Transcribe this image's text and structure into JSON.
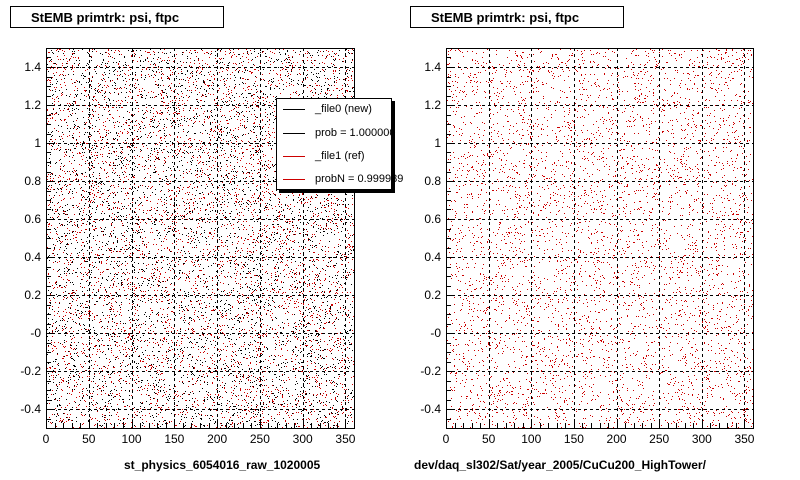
{
  "chart_data": [
    {
      "type": "scatter",
      "title": "StEMB primtrk: psi, ftpc",
      "xlabel": "st_physics_6054016_raw_1020005",
      "ylabel": "",
      "xlim": [
        0,
        360
      ],
      "ylim": [
        -0.5,
        1.5
      ],
      "x_ticks": [
        0,
        50,
        100,
        150,
        200,
        250,
        300,
        350
      ],
      "x_tick_labels": [
        "0",
        "50",
        "100",
        "150",
        "200",
        "250",
        "300",
        "350"
      ],
      "y_ticks": [
        -0.4,
        -0.2,
        0.0,
        0.2,
        0.4,
        0.6,
        0.8,
        1.0,
        1.2,
        1.4
      ],
      "y_tick_labels": [
        "-0.4",
        "-0.2",
        "-0",
        "0.2",
        "0.4",
        "0.6",
        "0.8",
        "1",
        "1.2",
        "1.4"
      ],
      "grid": true,
      "series": [
        {
          "name": "_file0 (new)",
          "color": "#000000",
          "distribution": "uniform",
          "x_range": [
            0,
            360
          ],
          "y_range": [
            -0.5,
            1.5
          ]
        },
        {
          "name": "_file1 (ref)",
          "color": "#cc0000",
          "distribution": "uniform",
          "x_range": [
            0,
            360
          ],
          "y_range": [
            -0.5,
            1.5
          ]
        }
      ],
      "legend": {
        "placement": "top-right",
        "entries": [
          {
            "label": "_file0 (new)",
            "color": "#000000"
          },
          {
            "label": "prob = 1.000000",
            "color": "#000000"
          },
          {
            "label": "_file1 (ref)",
            "color": "#cc0000"
          },
          {
            "label": "probN = 0.999989",
            "color": "#cc0000"
          }
        ]
      }
    },
    {
      "type": "scatter",
      "title": "StEMB primtrk: psi, ftpc",
      "xlabel": "dev/daq_sl302/Sat/year_2005/CuCu200_HighTower/",
      "ylabel": "",
      "xlim": [
        0,
        360
      ],
      "ylim": [
        -0.5,
        1.5
      ],
      "x_ticks": [
        0,
        50,
        100,
        150,
        200,
        250,
        300,
        350
      ],
      "x_tick_labels": [
        "0",
        "50",
        "100",
        "150",
        "200",
        "250",
        "300",
        "350"
      ],
      "y_ticks": [
        -0.4,
        -0.2,
        0.0,
        0.2,
        0.4,
        0.6,
        0.8,
        1.0,
        1.2,
        1.4
      ],
      "y_tick_labels": [
        "-0.4",
        "-0.2",
        "-0",
        "0.2",
        "0.4",
        "0.6",
        "0.8",
        "1",
        "1.2",
        "1.4"
      ],
      "grid": true,
      "series": [
        {
          "name": "_file1 (ref)",
          "color": "#cc0000",
          "distribution": "uniform",
          "x_range": [
            0,
            360
          ],
          "y_range": [
            -0.5,
            1.5
          ]
        }
      ]
    }
  ]
}
